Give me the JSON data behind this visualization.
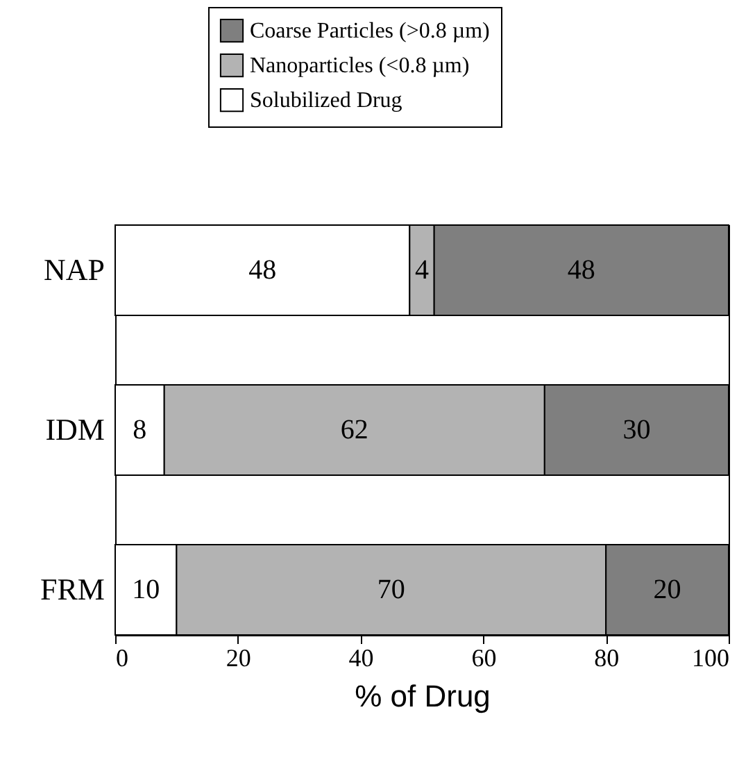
{
  "chart_data": {
    "type": "bar",
    "orientation": "horizontal",
    "stacked": true,
    "categories": [
      "NAP",
      "IDM",
      "FRM"
    ],
    "series": [
      {
        "name": "Solubilized Drug",
        "color": "#ffffff",
        "values": [
          48,
          8,
          10
        ]
      },
      {
        "name": "Nanoparticles (<0.8 µm)",
        "color": "#b3b3b3",
        "values": [
          4,
          62,
          70
        ]
      },
      {
        "name": "Coarse Particles (>0.8 µm)",
        "color": "#7f7f7f",
        "values": [
          48,
          30,
          20
        ]
      }
    ],
    "xlabel": "% of Drug",
    "xlim": [
      0,
      100
    ],
    "xticks": [
      0,
      20,
      40,
      60,
      80,
      100
    ],
    "data_labels": true,
    "legend": "top",
    "grid": false
  }
}
